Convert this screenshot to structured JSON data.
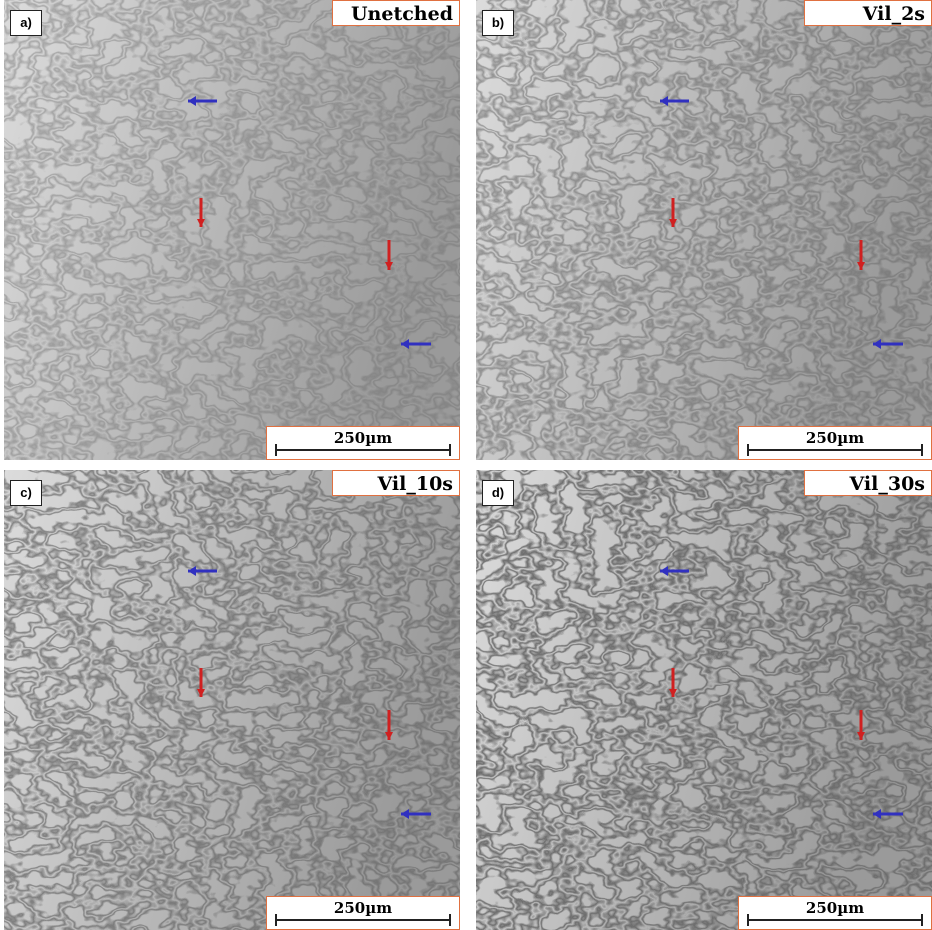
{
  "panels": [
    {
      "label": "a)",
      "title": "Unetched",
      "scale_label": "250µm"
    },
    {
      "label": "b)",
      "title": "Vil_2s",
      "scale_label": "250µm"
    },
    {
      "label": "c)",
      "title": "Vil_10s",
      "scale_label": "250µm"
    },
    {
      "label": "d)",
      "title": "Vil_30s",
      "scale_label": "250µm"
    }
  ]
}
